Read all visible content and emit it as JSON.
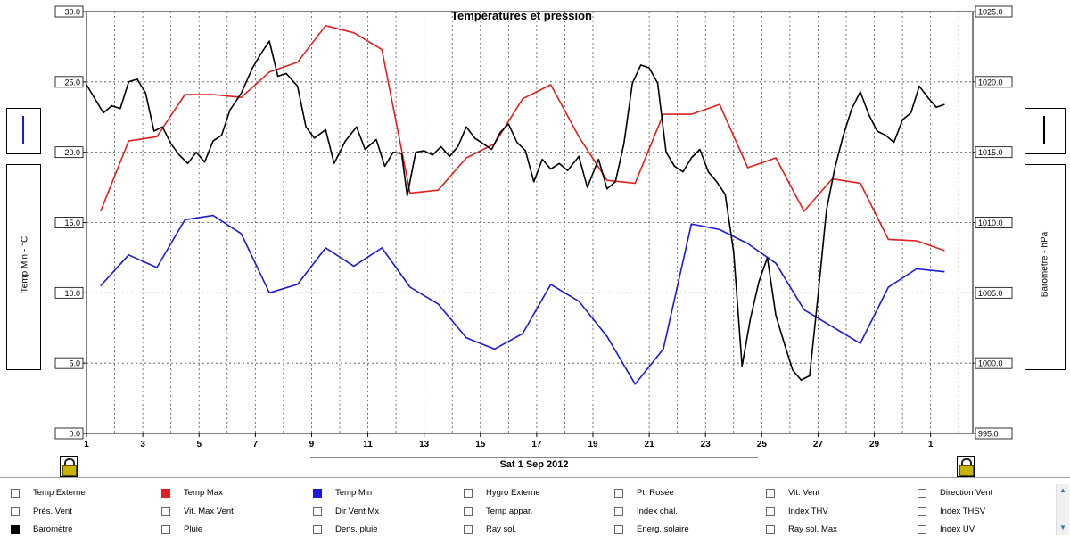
{
  "chart_data": {
    "type": "line",
    "title": "Températures et pression",
    "x_ticks": [
      "1",
      "3",
      "5",
      "7",
      "9",
      "11",
      "13",
      "15",
      "17",
      "19",
      "21",
      "23",
      "25",
      "27",
      "29",
      "1"
    ],
    "y_left": {
      "label": "Temp Min - °C",
      "ticks": [
        "0.0",
        "5.0",
        "10.0",
        "15.0",
        "20.0",
        "25.0",
        "30.0"
      ],
      "range": [
        0,
        30
      ]
    },
    "y_right": {
      "label": "Baromètre - hPa",
      "ticks": [
        "995.0",
        "1000.0",
        "1005.0",
        "1010.0",
        "1015.0",
        "1020.0",
        "1025.0"
      ],
      "range": [
        995,
        1025
      ]
    },
    "grid": true,
    "series": [
      {
        "name": "Temp Max",
        "color": "#e02020",
        "axis": "left",
        "points": [
          [
            1.5,
            15.8
          ],
          [
            2.5,
            20.8
          ],
          [
            3.5,
            21.1
          ],
          [
            4.5,
            24.1
          ],
          [
            5.5,
            24.1
          ],
          [
            6.5,
            23.9
          ],
          [
            7.5,
            25.7
          ],
          [
            8.5,
            26.4
          ],
          [
            9.5,
            29.0
          ],
          [
            10.5,
            28.5
          ],
          [
            11.5,
            27.3
          ],
          [
            12.5,
            17.1
          ],
          [
            13.5,
            17.3
          ],
          [
            14.5,
            19.6
          ],
          [
            15.5,
            20.6
          ],
          [
            16.5,
            23.8
          ],
          [
            17.5,
            24.8
          ],
          [
            18.5,
            21.1
          ],
          [
            19.5,
            18.0
          ],
          [
            20.5,
            17.8
          ],
          [
            21.5,
            22.7
          ],
          [
            22.5,
            22.7
          ],
          [
            23.5,
            23.4
          ],
          [
            24.5,
            18.9
          ],
          [
            25.5,
            19.6
          ],
          [
            26.5,
            15.8
          ],
          [
            27.5,
            18.1
          ],
          [
            28.5,
            17.8
          ],
          [
            29.5,
            13.8
          ],
          [
            30.5,
            13.7
          ],
          [
            31.5,
            13.0
          ]
        ]
      },
      {
        "name": "Temp Min",
        "color": "#1a1ad8",
        "axis": "left",
        "points": [
          [
            1.5,
            10.5
          ],
          [
            2.5,
            12.7
          ],
          [
            3.5,
            11.8
          ],
          [
            4.5,
            15.2
          ],
          [
            5.5,
            15.5
          ],
          [
            6.5,
            14.2
          ],
          [
            7.5,
            10.0
          ],
          [
            8.5,
            10.6
          ],
          [
            9.5,
            13.2
          ],
          [
            10.5,
            11.9
          ],
          [
            11.5,
            13.2
          ],
          [
            12.5,
            10.4
          ],
          [
            13.5,
            9.2
          ],
          [
            14.5,
            6.8
          ],
          [
            15.5,
            6.0
          ],
          [
            16.5,
            7.1
          ],
          [
            17.5,
            10.6
          ],
          [
            18.5,
            9.4
          ],
          [
            19.5,
            6.9
          ],
          [
            20.5,
            3.5
          ],
          [
            21.5,
            6.0
          ],
          [
            22.5,
            14.9
          ],
          [
            23.5,
            14.5
          ],
          [
            24.5,
            13.5
          ],
          [
            25.5,
            12.1
          ],
          [
            26.5,
            8.8
          ],
          [
            27.5,
            7.6
          ],
          [
            28.5,
            6.4
          ],
          [
            29.5,
            10.4
          ],
          [
            30.5,
            11.7
          ],
          [
            31.5,
            11.5
          ]
        ]
      },
      {
        "name": "Baromètre",
        "color": "#000000",
        "axis": "right",
        "points": [
          [
            1.0,
            1019.8
          ],
          [
            1.3,
            1018.8
          ],
          [
            1.6,
            1017.8
          ],
          [
            1.9,
            1018.3
          ],
          [
            2.2,
            1018.1
          ],
          [
            2.5,
            1020.0
          ],
          [
            2.8,
            1020.2
          ],
          [
            3.1,
            1019.2
          ],
          [
            3.4,
            1016.5
          ],
          [
            3.7,
            1016.8
          ],
          [
            4.0,
            1015.6
          ],
          [
            4.3,
            1014.8
          ],
          [
            4.6,
            1014.2
          ],
          [
            4.9,
            1015.0
          ],
          [
            5.2,
            1014.3
          ],
          [
            5.5,
            1015.8
          ],
          [
            5.8,
            1016.2
          ],
          [
            6.1,
            1018.0
          ],
          [
            6.5,
            1019.2
          ],
          [
            6.9,
            1021.0
          ],
          [
            7.2,
            1022.0
          ],
          [
            7.5,
            1022.9
          ],
          [
            7.8,
            1020.4
          ],
          [
            8.1,
            1020.6
          ],
          [
            8.5,
            1019.7
          ],
          [
            8.8,
            1016.8
          ],
          [
            9.1,
            1016.0
          ],
          [
            9.5,
            1016.6
          ],
          [
            9.8,
            1014.2
          ],
          [
            10.2,
            1015.8
          ],
          [
            10.6,
            1016.8
          ],
          [
            10.9,
            1015.2
          ],
          [
            11.3,
            1015.9
          ],
          [
            11.6,
            1014.0
          ],
          [
            11.9,
            1015.0
          ],
          [
            12.2,
            1014.9
          ],
          [
            12.4,
            1011.9
          ],
          [
            12.7,
            1015.0
          ],
          [
            13.0,
            1015.1
          ],
          [
            13.3,
            1014.8
          ],
          [
            13.6,
            1015.4
          ],
          [
            13.9,
            1014.7
          ],
          [
            14.2,
            1015.4
          ],
          [
            14.5,
            1016.8
          ],
          [
            14.8,
            1016.0
          ],
          [
            15.1,
            1015.6
          ],
          [
            15.4,
            1015.2
          ],
          [
            15.7,
            1016.4
          ],
          [
            16.0,
            1017.0
          ],
          [
            16.3,
            1015.7
          ],
          [
            16.6,
            1015.1
          ],
          [
            16.9,
            1012.9
          ],
          [
            17.2,
            1014.5
          ],
          [
            17.5,
            1013.8
          ],
          [
            17.8,
            1014.2
          ],
          [
            18.1,
            1013.7
          ],
          [
            18.5,
            1014.7
          ],
          [
            18.8,
            1012.5
          ],
          [
            19.2,
            1014.5
          ],
          [
            19.5,
            1012.4
          ],
          [
            19.8,
            1012.9
          ],
          [
            20.1,
            1015.6
          ],
          [
            20.4,
            1019.9
          ],
          [
            20.7,
            1021.2
          ],
          [
            21.0,
            1021.0
          ],
          [
            21.3,
            1019.9
          ],
          [
            21.6,
            1015.0
          ],
          [
            21.9,
            1014.0
          ],
          [
            22.2,
            1013.6
          ],
          [
            22.5,
            1014.6
          ],
          [
            22.8,
            1015.2
          ],
          [
            23.1,
            1013.6
          ],
          [
            23.4,
            1012.9
          ],
          [
            23.7,
            1012.0
          ],
          [
            24.0,
            1007.9
          ],
          [
            24.3,
            999.8
          ],
          [
            24.6,
            1003.2
          ],
          [
            24.9,
            1005.8
          ],
          [
            25.2,
            1007.5
          ],
          [
            25.5,
            1003.4
          ],
          [
            25.8,
            1001.4
          ],
          [
            26.1,
            999.5
          ],
          [
            26.4,
            998.8
          ],
          [
            26.7,
            999.1
          ],
          [
            27.0,
            1004.8
          ],
          [
            27.3,
            1010.9
          ],
          [
            27.6,
            1013.9
          ],
          [
            27.9,
            1016.2
          ],
          [
            28.2,
            1018.1
          ],
          [
            28.5,
            1019.3
          ],
          [
            28.8,
            1017.7
          ],
          [
            29.1,
            1016.5
          ],
          [
            29.4,
            1016.2
          ],
          [
            29.7,
            1015.7
          ],
          [
            30.0,
            1017.3
          ],
          [
            30.3,
            1017.8
          ],
          [
            30.6,
            1019.7
          ],
          [
            30.9,
            1018.9
          ],
          [
            31.2,
            1018.2
          ],
          [
            31.5,
            1018.4
          ]
        ]
      }
    ],
    "x_caption": "Sat 1 Sep 2012"
  },
  "legend": [
    {
      "label": "Temp Externe",
      "color": ""
    },
    {
      "label": "Temp Max",
      "color": "#e02020"
    },
    {
      "label": "Temp Min",
      "color": "#1a1ad8"
    },
    {
      "label": "Hygro Externe",
      "color": ""
    },
    {
      "label": "Pt. Rosée",
      "color": ""
    },
    {
      "label": "Vit. Vent",
      "color": ""
    },
    {
      "label": "Direction Vent",
      "color": ""
    },
    {
      "label": "Prés. Vent",
      "color": ""
    },
    {
      "label": "Vit. Max Vent",
      "color": ""
    },
    {
      "label": "Dir Vent Mx",
      "color": ""
    },
    {
      "label": "Temp appar.",
      "color": ""
    },
    {
      "label": "Index chal.",
      "color": ""
    },
    {
      "label": "Index THV",
      "color": ""
    },
    {
      "label": "Index THSV",
      "color": ""
    },
    {
      "label": "Baromètre",
      "color": "#000000"
    },
    {
      "label": "Pluie",
      "color": ""
    },
    {
      "label": "Dens. pluie",
      "color": ""
    },
    {
      "label": "Ray sol.",
      "color": ""
    },
    {
      "label": "Energ. solaire",
      "color": ""
    },
    {
      "label": "Ray sol. Max",
      "color": ""
    },
    {
      "label": "Index UV",
      "color": ""
    }
  ]
}
